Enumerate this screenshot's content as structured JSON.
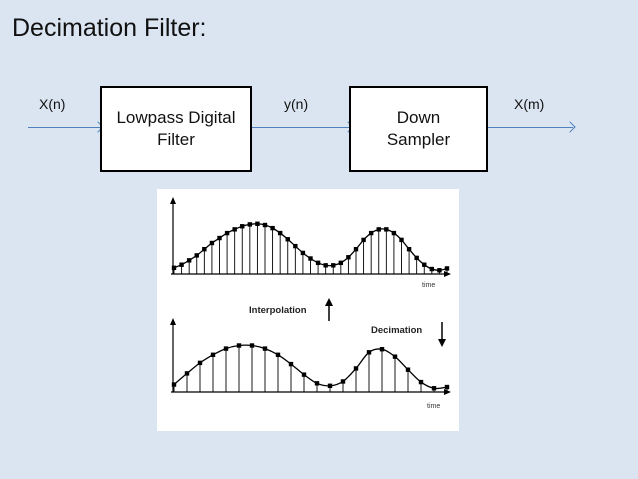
{
  "title": "Decimation Filter:",
  "signals": {
    "input": "X(n)",
    "middle": "y(n)",
    "output": "X(m)"
  },
  "blocks": {
    "lowpass": {
      "line1": "Lowpass Digital",
      "line2": "Filter"
    },
    "downsampler": {
      "line1": "Down",
      "line2": "Sampler"
    }
  },
  "figure": {
    "top_axis_label": "time",
    "bottom_axis_label": "time",
    "interpolation_label": "Interpolation",
    "decimation_label": "Decimation",
    "top_samples": [
      0.1,
      0.15,
      0.22,
      0.3,
      0.4,
      0.5,
      0.58,
      0.66,
      0.72,
      0.77,
      0.8,
      0.81,
      0.79,
      0.74,
      0.66,
      0.56,
      0.45,
      0.34,
      0.25,
      0.18,
      0.14,
      0.14,
      0.18,
      0.27,
      0.4,
      0.55,
      0.66,
      0.72,
      0.72,
      0.66,
      0.55,
      0.4,
      0.26,
      0.15,
      0.08,
      0.06,
      0.09
    ],
    "bottom_samples": [
      0.12,
      0.3,
      0.47,
      0.6,
      0.7,
      0.75,
      0.75,
      0.7,
      0.6,
      0.45,
      0.28,
      0.14,
      0.1,
      0.17,
      0.38,
      0.64,
      0.69,
      0.57,
      0.36,
      0.16,
      0.06,
      0.08
    ]
  }
}
